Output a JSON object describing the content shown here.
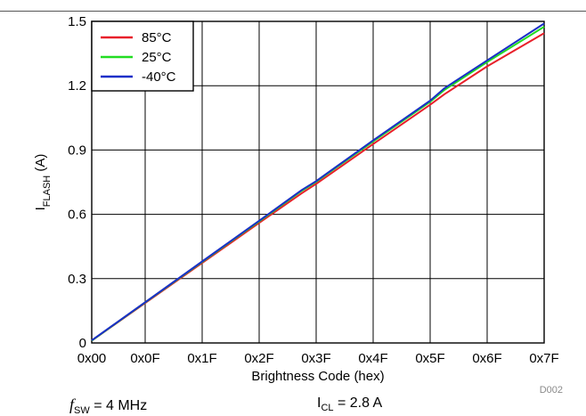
{
  "chart_data": {
    "type": "line",
    "figure_id": "D002",
    "xlabel": "Brightness Code (hex)",
    "ylabel": {
      "main": "I",
      "sub": "FLASH",
      "unit": " (A)"
    },
    "x_tick_labels": [
      "0x00",
      "0x0F",
      "0x1F",
      "0x2F",
      "0x3F",
      "0x4F",
      "0x5F",
      "0x6F",
      "0x7F"
    ],
    "x_tick_values": [
      0,
      15,
      31,
      47,
      63,
      79,
      95,
      111,
      127
    ],
    "xlim": [
      0,
      127
    ],
    "y_tick_labels": [
      "0",
      "0.3",
      "0.6",
      "0.9",
      "1.2",
      "1.5"
    ],
    "y_tick_values": [
      0,
      0.3,
      0.6,
      0.9,
      1.2,
      1.5
    ],
    "ylim": [
      0,
      1.5
    ],
    "grid": true,
    "legend_position": "top-left",
    "series": [
      {
        "name": "85°C",
        "color": "#e8202a",
        "x": [
          0,
          15,
          31,
          47,
          59,
          63,
          79,
          95,
          99,
          111,
          127
        ],
        "y": [
          0.011,
          0.186,
          0.373,
          0.56,
          0.699,
          0.742,
          0.928,
          1.111,
          1.16,
          1.29,
          1.445
        ]
      },
      {
        "name": "25°C",
        "color": "#22dd22",
        "x": [
          0,
          15,
          31,
          47,
          59,
          63,
          79,
          95,
          99,
          111,
          127
        ],
        "y": [
          0.011,
          0.189,
          0.378,
          0.567,
          0.71,
          0.752,
          0.94,
          1.125,
          1.18,
          1.31,
          1.475
        ]
      },
      {
        "name": "-40°C",
        "color": "#1a2fc8",
        "x": [
          0,
          15,
          31,
          47,
          59,
          63,
          79,
          95,
          99,
          111,
          127
        ],
        "y": [
          0.012,
          0.19,
          0.38,
          0.57,
          0.714,
          0.755,
          0.945,
          1.13,
          1.188,
          1.318,
          1.49
        ]
      }
    ]
  },
  "conditions": {
    "fsw": {
      "sym": "f",
      "sub": "SW",
      "value": " = 4 MHz"
    },
    "icl": {
      "sym": "I",
      "sub": "CL",
      "value": " = 2.8 A"
    }
  }
}
